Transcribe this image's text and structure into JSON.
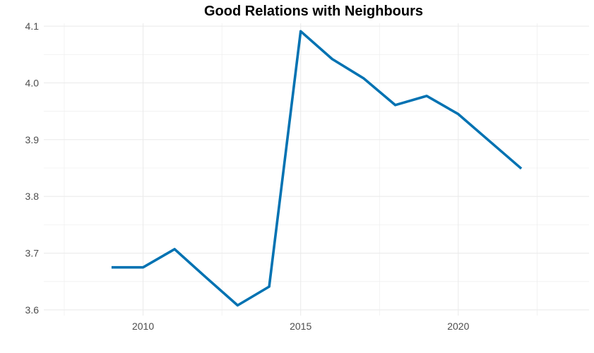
{
  "chart_data": {
    "type": "line",
    "title": "Good Relations with Neighbours",
    "xlabel": "",
    "ylabel": "",
    "x": [
      2009,
      2010,
      2011,
      2012,
      2013,
      2014,
      2015,
      2016,
      2017,
      2018,
      2019,
      2020,
      2021,
      2022
    ],
    "series": [
      {
        "values": [
          3.675,
          3.675,
          3.707,
          3.657,
          3.608,
          3.641,
          4.091,
          4.042,
          4.008,
          3.961,
          3.977,
          3.945,
          3.897,
          3.849
        ]
      }
    ],
    "xlim": [
      2006.85,
      2024.15
    ],
    "ylim": [
      3.59,
      4.105
    ],
    "x_ticks": [
      "2010",
      "2015",
      "2020"
    ],
    "y_ticks": [
      "3.6",
      "3.7",
      "3.8",
      "3.9",
      "4.0",
      "4.1"
    ],
    "grid": true,
    "legend": "none",
    "line_color": "#0072b2",
    "grid_color": "#ebebeb"
  }
}
